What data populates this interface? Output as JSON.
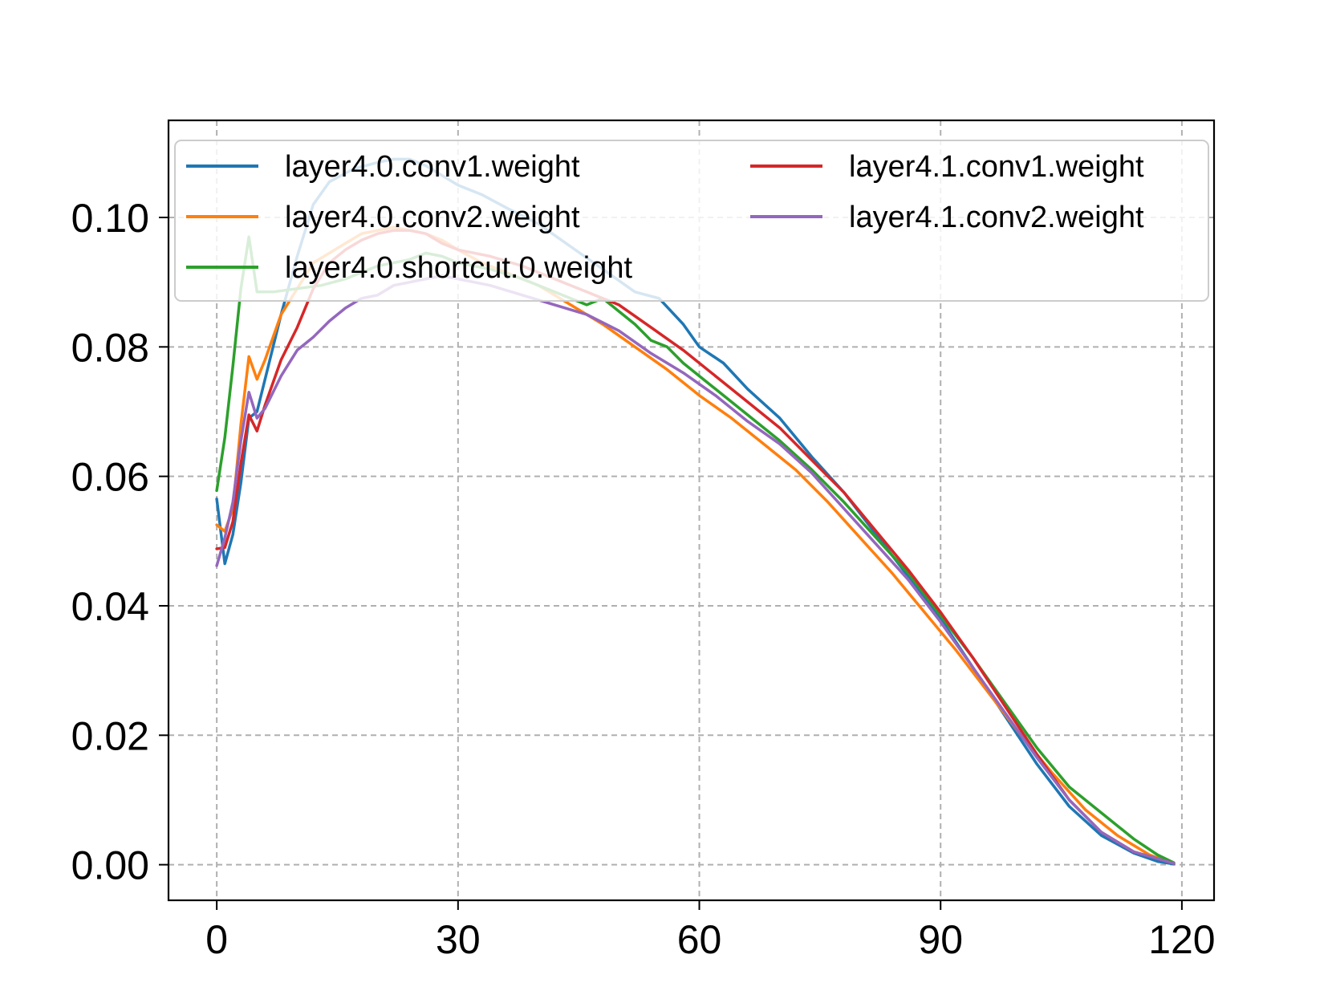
{
  "chart_data": {
    "type": "line",
    "title": "",
    "xlabel": "",
    "ylabel": "",
    "xlim": [
      -6,
      124
    ],
    "ylim": [
      -0.0055,
      0.115
    ],
    "xticks": [
      0,
      30,
      60,
      90,
      120
    ],
    "yticks": [
      0.0,
      0.02,
      0.04,
      0.06,
      0.08,
      0.1
    ],
    "xtick_labels": [
      "0",
      "30",
      "60",
      "90",
      "120"
    ],
    "ytick_labels": [
      "0.00",
      "0.02",
      "0.04",
      "0.06",
      "0.08",
      "0.10"
    ],
    "grid": true,
    "legend_position": "top",
    "legend_columns": 2,
    "series": [
      {
        "name": "layer4.0.conv1.weight",
        "color": "#1f77b4",
        "points": [
          [
            0,
            0.0565
          ],
          [
            1,
            0.0465
          ],
          [
            2,
            0.051
          ],
          [
            3,
            0.059
          ],
          [
            4,
            0.069
          ],
          [
            5,
            0.07
          ],
          [
            6,
            0.075
          ],
          [
            8,
            0.085
          ],
          [
            10,
            0.094
          ],
          [
            12,
            0.102
          ],
          [
            14,
            0.1055
          ],
          [
            17,
            0.1075
          ],
          [
            20,
            0.1085
          ],
          [
            22,
            0.109
          ],
          [
            24,
            0.109
          ],
          [
            26,
            0.108
          ],
          [
            28,
            0.1065
          ],
          [
            30,
            0.105
          ],
          [
            33,
            0.1035
          ],
          [
            36,
            0.1015
          ],
          [
            40,
            0.099
          ],
          [
            44,
            0.0955
          ],
          [
            48,
            0.092
          ],
          [
            52,
            0.0885
          ],
          [
            55,
            0.0875
          ],
          [
            58,
            0.0835
          ],
          [
            60,
            0.08
          ],
          [
            63,
            0.0775
          ],
          [
            66,
            0.0735
          ],
          [
            70,
            0.069
          ],
          [
            74,
            0.063
          ],
          [
            78,
            0.0575
          ],
          [
            82,
            0.051
          ],
          [
            86,
            0.0445
          ],
          [
            90,
            0.038
          ],
          [
            94,
            0.0305
          ],
          [
            98,
            0.023
          ],
          [
            102,
            0.0155
          ],
          [
            106,
            0.009
          ],
          [
            110,
            0.0045
          ],
          [
            114,
            0.0018
          ],
          [
            117,
            0.0005
          ],
          [
            119,
            0.0001
          ]
        ]
      },
      {
        "name": "layer4.0.conv2.weight",
        "color": "#ff7f0e",
        "points": [
          [
            0,
            0.0525
          ],
          [
            1,
            0.0515
          ],
          [
            2,
            0.055
          ],
          [
            3,
            0.068
          ],
          [
            4,
            0.0785
          ],
          [
            5,
            0.075
          ],
          [
            6,
            0.078
          ],
          [
            8,
            0.085
          ],
          [
            10,
            0.089
          ],
          [
            12,
            0.093
          ],
          [
            14,
            0.0945
          ],
          [
            16,
            0.096
          ],
          [
            18,
            0.0975
          ],
          [
            20,
            0.098
          ],
          [
            22,
            0.0985
          ],
          [
            24,
            0.098
          ],
          [
            26,
            0.0975
          ],
          [
            28,
            0.0965
          ],
          [
            30,
            0.095
          ],
          [
            33,
            0.093
          ],
          [
            36,
            0.0915
          ],
          [
            40,
            0.0895
          ],
          [
            44,
            0.0865
          ],
          [
            48,
            0.0835
          ],
          [
            52,
            0.08
          ],
          [
            56,
            0.0765
          ],
          [
            60,
            0.0725
          ],
          [
            64,
            0.069
          ],
          [
            68,
            0.065
          ],
          [
            72,
            0.061
          ],
          [
            76,
            0.056
          ],
          [
            80,
            0.0505
          ],
          [
            84,
            0.045
          ],
          [
            88,
            0.039
          ],
          [
            92,
            0.033
          ],
          [
            96,
            0.0265
          ],
          [
            100,
            0.02
          ],
          [
            104,
            0.014
          ],
          [
            108,
            0.0085
          ],
          [
            112,
            0.0045
          ],
          [
            116,
            0.0015
          ],
          [
            119,
            0.0002
          ]
        ]
      },
      {
        "name": "layer4.0.shortcut.0.weight",
        "color": "#2ca02c",
        "points": [
          [
            0,
            0.0578
          ],
          [
            1,
            0.066
          ],
          [
            2,
            0.077
          ],
          [
            3,
            0.089
          ],
          [
            4,
            0.097
          ],
          [
            5,
            0.0885
          ],
          [
            7,
            0.0885
          ],
          [
            10,
            0.089
          ],
          [
            13,
            0.0895
          ],
          [
            16,
            0.0905
          ],
          [
            20,
            0.0925
          ],
          [
            24,
            0.0935
          ],
          [
            26,
            0.0945
          ],
          [
            28,
            0.094
          ],
          [
            30,
            0.093
          ],
          [
            34,
            0.092
          ],
          [
            38,
            0.0905
          ],
          [
            42,
            0.0885
          ],
          [
            46,
            0.0865
          ],
          [
            48,
            0.0875
          ],
          [
            52,
            0.0835
          ],
          [
            54,
            0.081
          ],
          [
            56,
            0.08
          ],
          [
            58,
            0.0775
          ],
          [
            60,
            0.0755
          ],
          [
            63,
            0.0725
          ],
          [
            66,
            0.0695
          ],
          [
            70,
            0.0655
          ],
          [
            74,
            0.061
          ],
          [
            78,
            0.056
          ],
          [
            82,
            0.0505
          ],
          [
            86,
            0.045
          ],
          [
            90,
            0.0385
          ],
          [
            94,
            0.032
          ],
          [
            98,
            0.025
          ],
          [
            102,
            0.018
          ],
          [
            106,
            0.012
          ],
          [
            110,
            0.008
          ],
          [
            114,
            0.004
          ],
          [
            117,
            0.0015
          ],
          [
            119,
            0.0003
          ]
        ]
      },
      {
        "name": "layer4.1.conv1.weight",
        "color": "#d62728",
        "points": [
          [
            0,
            0.0488
          ],
          [
            1,
            0.049
          ],
          [
            2,
            0.053
          ],
          [
            3,
            0.062
          ],
          [
            4,
            0.0695
          ],
          [
            5,
            0.067
          ],
          [
            6,
            0.071
          ],
          [
            8,
            0.078
          ],
          [
            10,
            0.083
          ],
          [
            12,
            0.089
          ],
          [
            14,
            0.093
          ],
          [
            16,
            0.095
          ],
          [
            18,
            0.0965
          ],
          [
            20,
            0.0975
          ],
          [
            22,
            0.098
          ],
          [
            24,
            0.098
          ],
          [
            26,
            0.0975
          ],
          [
            28,
            0.096
          ],
          [
            30,
            0.095
          ],
          [
            34,
            0.094
          ],
          [
            38,
            0.0925
          ],
          [
            42,
            0.0905
          ],
          [
            46,
            0.0885
          ],
          [
            50,
            0.0865
          ],
          [
            54,
            0.083
          ],
          [
            58,
            0.0795
          ],
          [
            62,
            0.0755
          ],
          [
            66,
            0.0715
          ],
          [
            70,
            0.0675
          ],
          [
            74,
            0.0625
          ],
          [
            78,
            0.0575
          ],
          [
            82,
            0.0515
          ],
          [
            86,
            0.0455
          ],
          [
            90,
            0.039
          ],
          [
            94,
            0.032
          ],
          [
            98,
            0.0245
          ],
          [
            102,
            0.017
          ],
          [
            106,
            0.01
          ],
          [
            110,
            0.005
          ],
          [
            114,
            0.002
          ],
          [
            119,
            0.0002
          ]
        ]
      },
      {
        "name": "layer4.1.conv2.weight",
        "color": "#9467bd",
        "points": [
          [
            0,
            0.0462
          ],
          [
            1,
            0.0505
          ],
          [
            2,
            0.056
          ],
          [
            3,
            0.0655
          ],
          [
            4,
            0.073
          ],
          [
            5,
            0.069
          ],
          [
            6,
            0.0705
          ],
          [
            8,
            0.0755
          ],
          [
            10,
            0.0795
          ],
          [
            12,
            0.0815
          ],
          [
            14,
            0.084
          ],
          [
            16,
            0.086
          ],
          [
            18,
            0.0875
          ],
          [
            20,
            0.088
          ],
          [
            22,
            0.0895
          ],
          [
            24,
            0.09
          ],
          [
            26,
            0.0905
          ],
          [
            28,
            0.091
          ],
          [
            30,
            0.0905
          ],
          [
            34,
            0.0895
          ],
          [
            38,
            0.088
          ],
          [
            42,
            0.0865
          ],
          [
            46,
            0.085
          ],
          [
            50,
            0.0825
          ],
          [
            54,
            0.079
          ],
          [
            58,
            0.076
          ],
          [
            62,
            0.0725
          ],
          [
            66,
            0.0685
          ],
          [
            70,
            0.065
          ],
          [
            74,
            0.0605
          ],
          [
            78,
            0.055
          ],
          [
            82,
            0.0495
          ],
          [
            86,
            0.044
          ],
          [
            90,
            0.0375
          ],
          [
            94,
            0.0305
          ],
          [
            98,
            0.0235
          ],
          [
            102,
            0.0165
          ],
          [
            106,
            0.01
          ],
          [
            110,
            0.005
          ],
          [
            114,
            0.002
          ],
          [
            119,
            0.0002
          ]
        ]
      }
    ]
  }
}
